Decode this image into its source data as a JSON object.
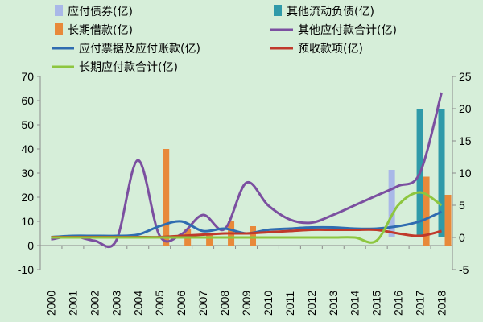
{
  "chart_data": {
    "type": "bar",
    "categories": [
      "2000",
      "2001",
      "2002",
      "2003",
      "2004",
      "2005",
      "2006",
      "2007",
      "2008",
      "2009",
      "2010",
      "2011",
      "2012",
      "2013",
      "2014",
      "2015",
      "2016",
      "2017",
      "2018"
    ],
    "y_left": {
      "ylim": [
        -10,
        70
      ],
      "ticks": [
        -10,
        0,
        10,
        20,
        30,
        40,
        50,
        60,
        70
      ]
    },
    "y_right": {
      "ylim": [
        -5,
        25
      ],
      "ticks": [
        -5,
        0,
        5,
        10,
        15,
        20,
        25
      ]
    },
    "grid": false,
    "legend_position": "top",
    "series": [
      {
        "name": "应付债券(亿)",
        "type": "bar",
        "axis": "right",
        "color": "#a9b8e8",
        "values": [
          0,
          0,
          0,
          0,
          0,
          0,
          0,
          0,
          0,
          0,
          0,
          0,
          0,
          0,
          0,
          0,
          10.5,
          0,
          0
        ]
      },
      {
        "name": "其他流动负债(亿)",
        "type": "bar",
        "axis": "right",
        "color": "#2f9aa9",
        "values": [
          0,
          0,
          0,
          0,
          0,
          0,
          0,
          0,
          0,
          0,
          0,
          0,
          0,
          0,
          0,
          0,
          0,
          20,
          20
        ]
      },
      {
        "name": "长期借款(亿)",
        "type": "bar",
        "axis": "left",
        "color": "#e8893a",
        "values": [
          0,
          0,
          0,
          0,
          0,
          40,
          7,
          5,
          10,
          8,
          0,
          0,
          0,
          0,
          0,
          0,
          0,
          28.5,
          21
        ]
      },
      {
        "name": "其他应付款合计(亿)",
        "type": "line",
        "axis": "right",
        "color": "#7b4fa0",
        "values": [
          -0.3,
          0.2,
          -0.5,
          -0.5,
          12,
          0.3,
          0.5,
          3.5,
          1.3,
          8.5,
          5,
          2.8,
          2.3,
          3.5,
          5,
          6.5,
          8,
          10,
          22.5
        ]
      },
      {
        "name": "应付票据及应付账款(亿)",
        "type": "line",
        "axis": "left",
        "color": "#2f6cb0",
        "values": [
          3.5,
          4,
          4,
          4,
          4.5,
          8,
          10,
          6,
          7,
          5,
          6.5,
          7,
          7.5,
          7.5,
          7,
          7,
          8,
          10,
          14
        ]
      },
      {
        "name": "预收款项(亿)",
        "type": "line",
        "axis": "left",
        "color": "#c0392b",
        "values": [
          3.5,
          3.5,
          3.5,
          3.5,
          3.5,
          3.5,
          4,
          4.5,
          5,
          5,
          5.5,
          6,
          6.5,
          6.5,
          6.5,
          6.5,
          5,
          4,
          6
        ]
      },
      {
        "name": "长期应付款合计(亿)",
        "type": "line",
        "axis": "right",
        "color": "#8dc63f",
        "values": [
          0,
          0,
          0,
          0,
          0,
          0,
          0,
          0,
          0,
          0,
          0,
          0,
          0,
          0,
          0,
          -0.5,
          5,
          7,
          5
        ]
      }
    ]
  }
}
